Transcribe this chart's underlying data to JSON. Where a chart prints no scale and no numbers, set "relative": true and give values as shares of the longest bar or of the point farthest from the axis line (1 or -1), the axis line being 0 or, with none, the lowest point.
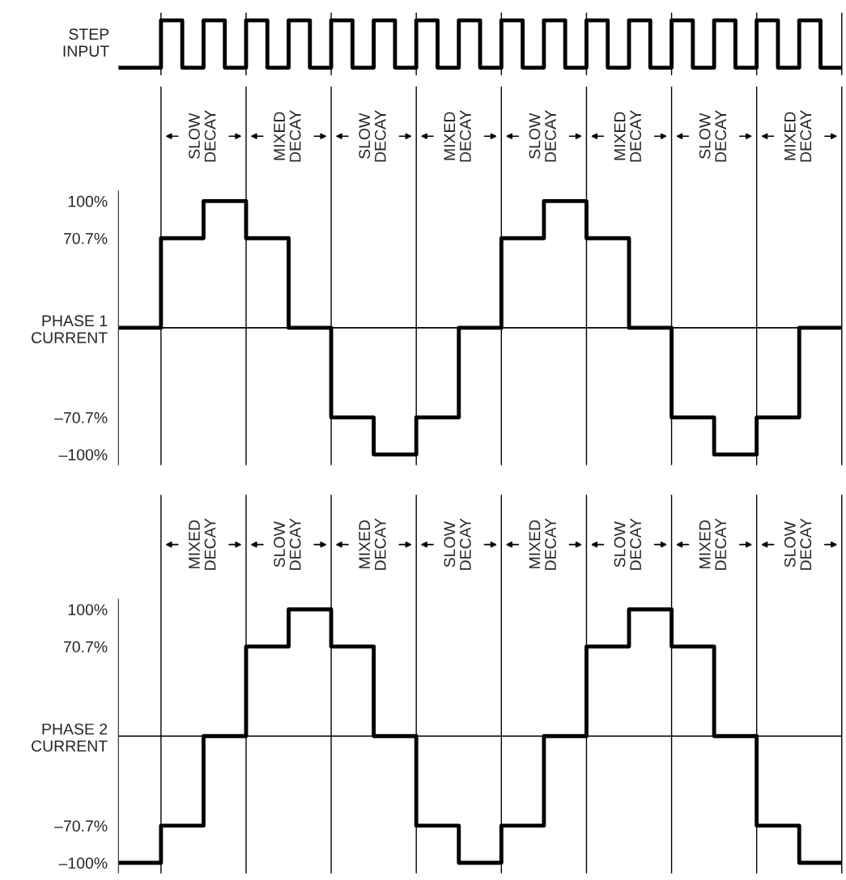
{
  "chart_data": [
    {
      "type": "step",
      "ylabel": "STEP\nINPUT",
      "relative": true,
      "tick_labels": false,
      "grid": "x",
      "categories": [
        null,
        null,
        null,
        null,
        null,
        null,
        null,
        null,
        null,
        null,
        null,
        null,
        null,
        null,
        null,
        null,
        null,
        null,
        null,
        null,
        null,
        null,
        null,
        null,
        null,
        null,
        null,
        null,
        null,
        null,
        null,
        null,
        null,
        null,
        null
      ],
      "series": [
        {
          "color": "#000000",
          "values": [
            0,
            0,
            1,
            0,
            1,
            0,
            1,
            0,
            1,
            0,
            1,
            0,
            1,
            0,
            1,
            0,
            1,
            0,
            1,
            0,
            1,
            0,
            1,
            0,
            1,
            0,
            1,
            0,
            1,
            0,
            1,
            0,
            1,
            0,
            0
          ]
        }
      ]
    },
    {
      "type": "step",
      "ylim": [
        -108,
        108
      ],
      "tick_labels": "y",
      "yticks": [
        {
          "value": 100,
          "label": "100%"
        },
        {
          "value": 70.7,
          "label": "70.7%"
        },
        {
          "value": 0,
          "label": "PHASE 1\nCURRENT"
        },
        {
          "value": -70.7,
          "label": "–70.7%"
        },
        {
          "value": -100,
          "label": "–100%"
        }
      ],
      "categories": [
        null,
        null,
        null,
        null,
        null,
        null,
        null,
        null,
        null,
        null,
        null,
        null,
        null,
        null,
        null,
        null,
        null,
        null
      ],
      "grid": "x",
      "series": [
        {
          "color": "#000000",
          "values": [
            0,
            70.7,
            100,
            70.7,
            0,
            -70.7,
            -100,
            -70.7,
            0,
            70.7,
            100,
            70.7,
            0,
            -70.7,
            -100,
            -70.7,
            0,
            0
          ]
        }
      ],
      "ref_lines": [
        {
          "axis": "y",
          "value": 0
        }
      ],
      "annotations": [
        "SLOW\nDECAY",
        "MIXED\nDECAY",
        "SLOW\nDECAY",
        "MIXED\nDECAY",
        "SLOW\nDECAY",
        "MIXED\nDECAY",
        "SLOW\nDECAY",
        "MIXED\nDECAY"
      ]
    },
    {
      "type": "step",
      "ylim": [
        -108,
        108
      ],
      "tick_labels": "y",
      "yticks": [
        {
          "value": 100,
          "label": "100%"
        },
        {
          "value": 70.7,
          "label": "70.7%"
        },
        {
          "value": 0,
          "label": "PHASE 2\nCURRENT"
        },
        {
          "value": -70.7,
          "label": "–70.7%"
        },
        {
          "value": -100,
          "label": "–100%"
        }
      ],
      "categories": [
        null,
        null,
        null,
        null,
        null,
        null,
        null,
        null,
        null,
        null,
        null,
        null,
        null,
        null,
        null,
        null,
        null,
        null
      ],
      "grid": "x",
      "series": [
        {
          "color": "#000000",
          "values": [
            -100,
            -70.7,
            0,
            70.7,
            100,
            70.7,
            0,
            -70.7,
            -100,
            -70.7,
            0,
            70.7,
            100,
            70.7,
            0,
            -70.7,
            -100,
            -100
          ]
        }
      ],
      "ref_lines": [
        {
          "axis": "y",
          "value": 0
        }
      ],
      "annotations": [
        "MIXED\nDECAY",
        "SLOW\nDECAY",
        "MIXED\nDECAY",
        "SLOW\nDECAY",
        "MIXED\nDECAY",
        "SLOW\nDECAY",
        "MIXED\nDECAY",
        "SLOW\nDECAY"
      ]
    }
  ]
}
